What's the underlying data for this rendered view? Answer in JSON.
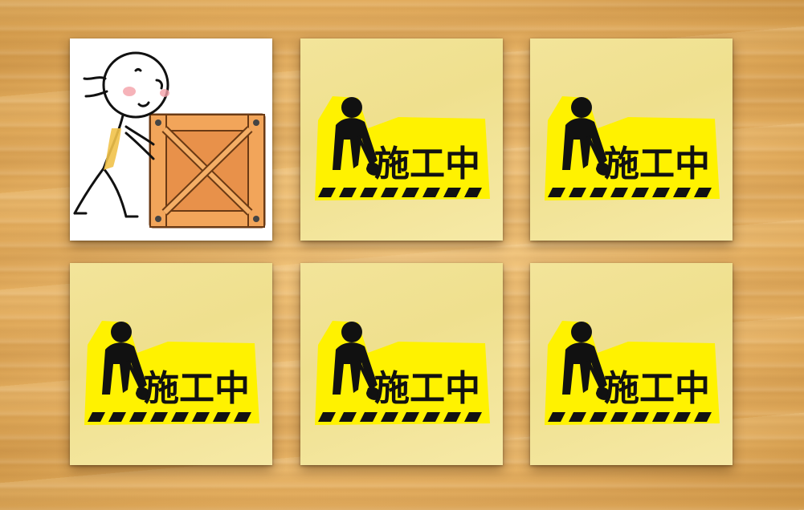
{
  "game": {
    "board_name": "memory-match",
    "columns": 3,
    "rows": 2
  },
  "tiles": [
    {
      "state": "face-up",
      "image": "stick-figure-pushing-crate"
    },
    {
      "state": "face-down",
      "back_label": "施工中",
      "back_icon": "construction-worker-icon"
    },
    {
      "state": "face-down",
      "back_label": "施工中",
      "back_icon": "construction-worker-icon"
    },
    {
      "state": "face-down",
      "back_label": "施工中",
      "back_icon": "construction-worker-icon"
    },
    {
      "state": "face-down",
      "back_label": "施工中",
      "back_icon": "construction-worker-icon"
    },
    {
      "state": "face-down",
      "back_label": "施工中",
      "back_icon": "construction-worker-icon"
    }
  ],
  "colors": {
    "card_back": "#f1e295",
    "sign_yellow": "#fff200",
    "sign_text": "#111111",
    "crate": "#e8914a",
    "table_wood": "#e9b86a"
  }
}
